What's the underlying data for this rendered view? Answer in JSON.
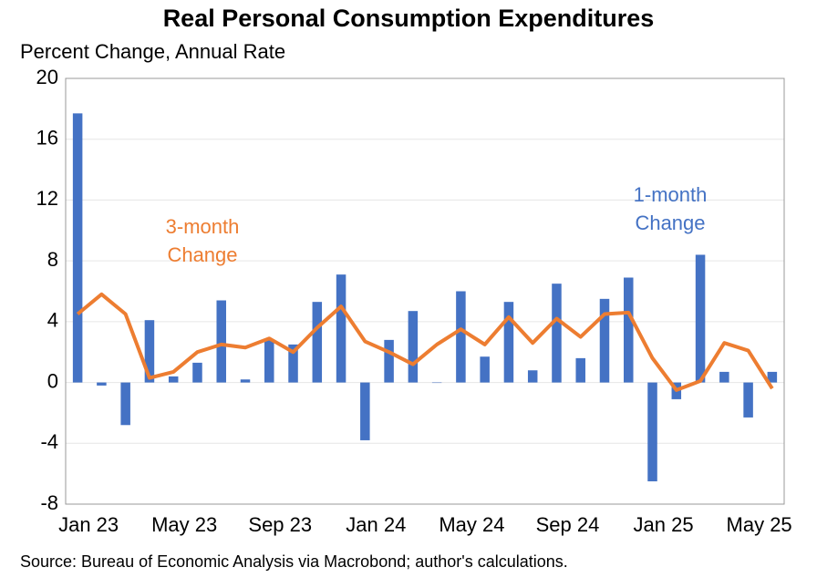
{
  "chart_data": {
    "type": "bar_line",
    "title": "Real Personal Consumption Expenditures",
    "y_label": "Percent Change, Annual Rate",
    "source": "Source: Bureau of Economic Analysis via Macrobond; author's calculations.",
    "categories": [
      "Jan 23",
      null,
      null,
      null,
      "May 23",
      null,
      null,
      null,
      "Sep 23",
      null,
      null,
      null,
      "Jan 24",
      null,
      null,
      null,
      "May 24",
      null,
      null,
      null,
      "Sep 24",
      null,
      null,
      null,
      "Jan 25",
      null,
      null,
      null,
      "May 25",
      null
    ],
    "series": [
      {
        "name": "1-month Change",
        "kind": "bar",
        "color": "#4472c4",
        "values": [
          17.7,
          -0.2,
          -2.8,
          4.1,
          0.4,
          1.3,
          5.4,
          0.2,
          2.8,
          2.5,
          5.3,
          7.1,
          -3.8,
          2.8,
          4.7,
          0.0,
          6.0,
          1.7,
          5.3,
          0.8,
          6.5,
          1.6,
          5.5,
          6.9,
          -6.5,
          -1.1,
          8.4,
          0.7,
          -2.3,
          0.7
        ]
      },
      {
        "name": "3-month Change",
        "kind": "line",
        "color": "#ed7d31",
        "values": [
          4.5,
          5.8,
          4.5,
          0.3,
          0.7,
          2.0,
          2.5,
          2.3,
          2.9,
          2.0,
          3.6,
          5.0,
          2.7,
          2.0,
          1.2,
          2.5,
          3.5,
          2.5,
          4.3,
          2.6,
          4.2,
          3.0,
          4.5,
          4.6,
          1.6,
          -0.5,
          0.1,
          2.6,
          2.1,
          -0.4
        ]
      }
    ],
    "annotations": [
      {
        "lines": [
          "3-month",
          "Change"
        ],
        "series": 1
      },
      {
        "lines": [
          "1-month",
          "Change"
        ],
        "series": 0
      }
    ],
    "ylim": [
      -8,
      20
    ],
    "yticks": [
      -8,
      -4,
      0,
      4,
      8,
      12,
      16,
      20
    ],
    "grid": true
  }
}
